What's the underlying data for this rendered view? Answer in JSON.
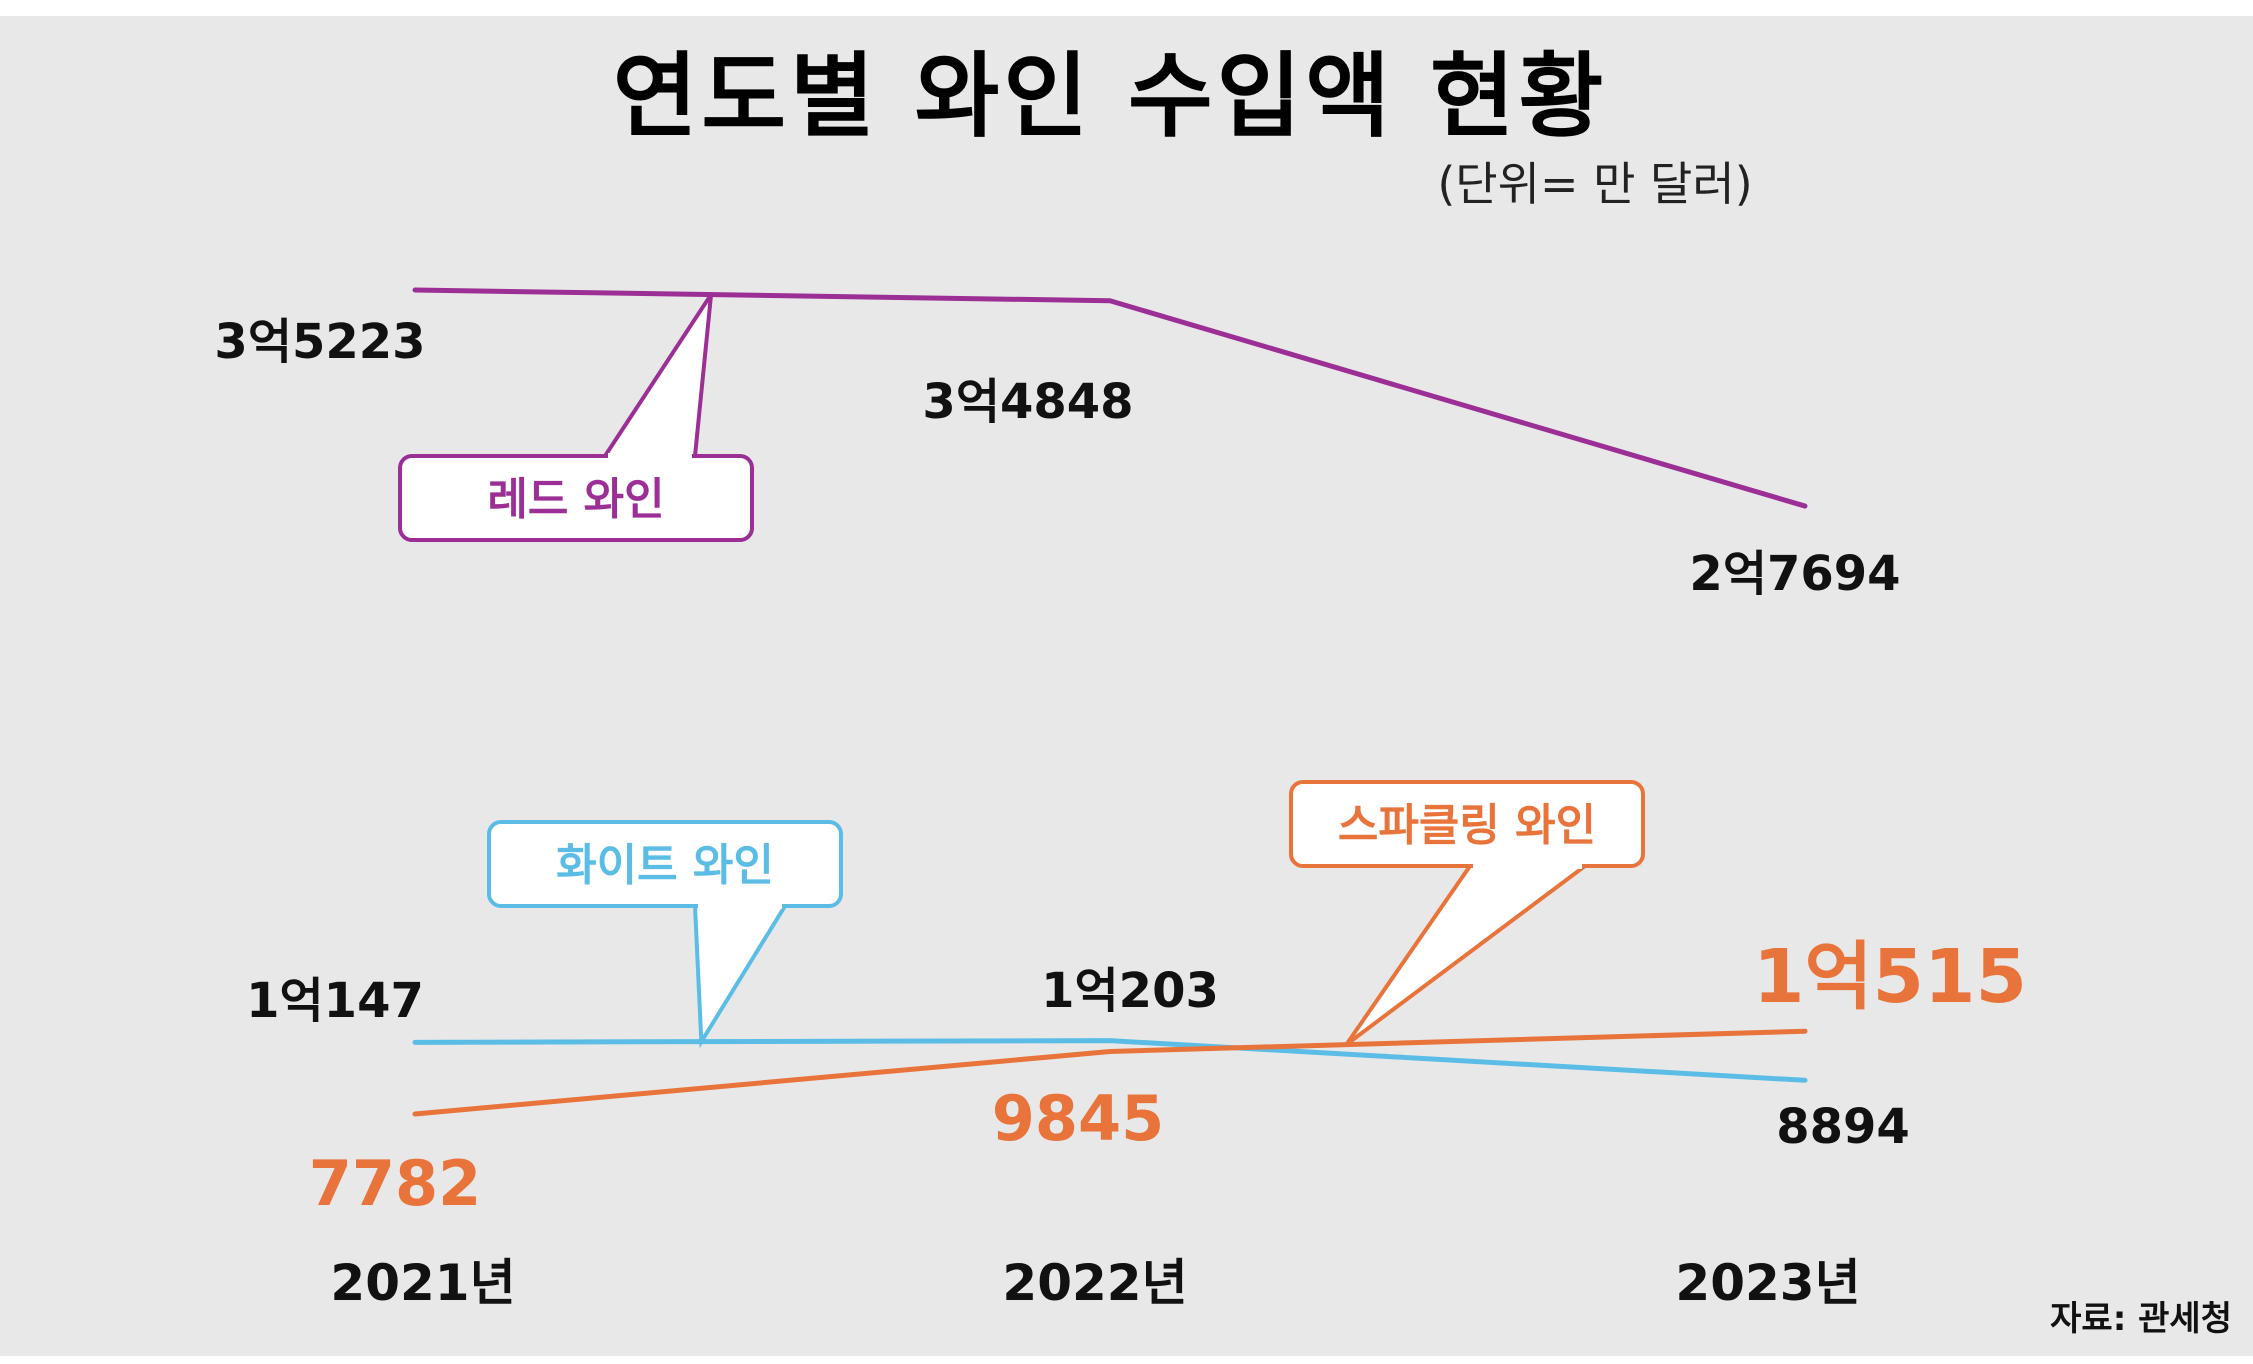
{
  "chart_data": {
    "type": "line",
    "title": "연도별 와인 수입액 현황",
    "subtitle": "(단위= 만 달러)",
    "categories": [
      "2021년",
      "2022년",
      "2023년"
    ],
    "series": [
      {
        "name": "레드 와인",
        "values": [
          35223,
          34848,
          27694
        ],
        "labels": [
          "3억5223",
          "3억4848",
          "2억7694"
        ],
        "color": "#9b2f96"
      },
      {
        "name": "화이트 와인",
        "values": [
          10147,
          10203,
          8894
        ],
        "labels": [
          "1억147",
          "1억203",
          "8894"
        ],
        "color": "#5bbde6"
      },
      {
        "name": "스파클링 와인",
        "values": [
          7782,
          9845,
          10515
        ],
        "labels": [
          "7782",
          "9845",
          "1억515"
        ],
        "color": "#e8743b"
      }
    ],
    "source": "자료: 관세청"
  }
}
